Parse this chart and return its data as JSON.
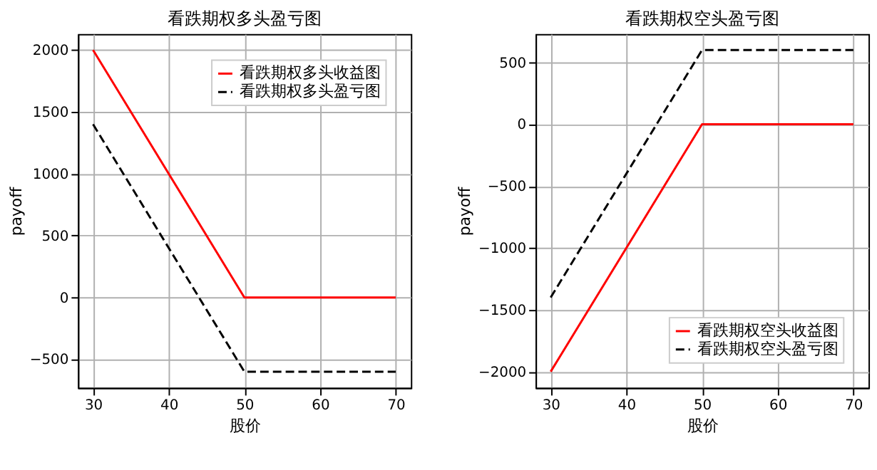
{
  "chart_data": [
    {
      "type": "line",
      "title": "看跌期权多头盈亏图",
      "xlabel": "股价",
      "ylabel": "payoff",
      "xlim": [
        28,
        72
      ],
      "ylim": [
        -730,
        2130
      ],
      "xticks": [
        30,
        40,
        50,
        60,
        70
      ],
      "yticks": [
        -500,
        0,
        500,
        1000,
        1500,
        2000
      ],
      "grid": true,
      "legend": "top right",
      "marker": "none",
      "series": [
        {
          "name": "看跌期权多头收益图",
          "color": "#ff0000",
          "line_style": "solid",
          "x": [
            30,
            50,
            70
          ],
          "values": [
            2000,
            0,
            0
          ]
        },
        {
          "name": "看跌期权多头盈亏图",
          "color": "#000000",
          "line_style": "dashed",
          "x": [
            30,
            50,
            70
          ],
          "values": [
            1400,
            -600,
            -600
          ]
        }
      ]
    },
    {
      "type": "line",
      "title": "看跌期权空头盈亏图",
      "xlabel": "股价",
      "ylabel": "payoff",
      "xlim": [
        28,
        72
      ],
      "ylim": [
        -2130,
        730
      ],
      "xticks": [
        30,
        40,
        50,
        60,
        70
      ],
      "yticks": [
        -2000,
        -1500,
        -1000,
        -500,
        0,
        500
      ],
      "grid": true,
      "legend": "bottom right",
      "marker": "none",
      "series": [
        {
          "name": "看跌期权空头收益图",
          "color": "#ff0000",
          "line_style": "solid",
          "x": [
            30,
            50,
            70
          ],
          "values": [
            -2000,
            0,
            0
          ]
        },
        {
          "name": "看跌期权空头盈亏图",
          "color": "#000000",
          "line_style": "dashed",
          "x": [
            30,
            50,
            70
          ],
          "values": [
            -1400,
            600,
            600
          ]
        }
      ]
    }
  ]
}
